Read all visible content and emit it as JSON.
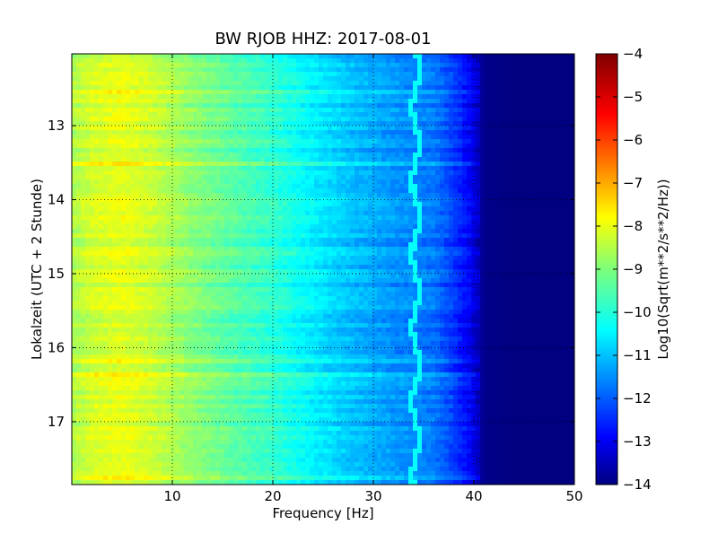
{
  "chart_data": {
    "type": "heatmap",
    "title": "BW RJOB HHZ: 2017-08-01",
    "xlabel": "Frequency [Hz]",
    "ylabel": "Lokalzeit (UTC + 2 Stunde)",
    "colorbar_label": "Log10(Sqrt(m**2/s**2/Hz))",
    "xlim": [
      0,
      50
    ],
    "ylim": [
      17.85,
      12.03
    ],
    "y_inverted": true,
    "grid": true,
    "x_ticks": [
      10,
      20,
      30,
      40,
      50
    ],
    "y_ticks": [
      13,
      14,
      15,
      16,
      17
    ],
    "colormap": "jet",
    "color_range": [
      -14,
      -4
    ],
    "colorbar_ticks": [
      -4,
      -5,
      -6,
      -7,
      -8,
      -9,
      -10,
      -11,
      -12,
      -13,
      -14
    ],
    "spectral_profile": {
      "frequency_hz": [
        0,
        2,
        5,
        8,
        12,
        16,
        20,
        24,
        28,
        32,
        36,
        38,
        40,
        41,
        44,
        50
      ],
      "log10_amplitude": [
        -8.6,
        -8.2,
        -8.0,
        -8.3,
        -8.9,
        -9.4,
        -9.8,
        -10.4,
        -10.9,
        -11.3,
        -11.6,
        -12.2,
        -13.0,
        -13.9,
        -14.0,
        -14.0
      ]
    },
    "annotations": [
      {
        "name": "narrow-band line near 34 Hz",
        "x": 34.2,
        "value": -10.2
      },
      {
        "name": "line near 5 Hz",
        "x": 5.0,
        "value": -7.9
      }
    ]
  }
}
